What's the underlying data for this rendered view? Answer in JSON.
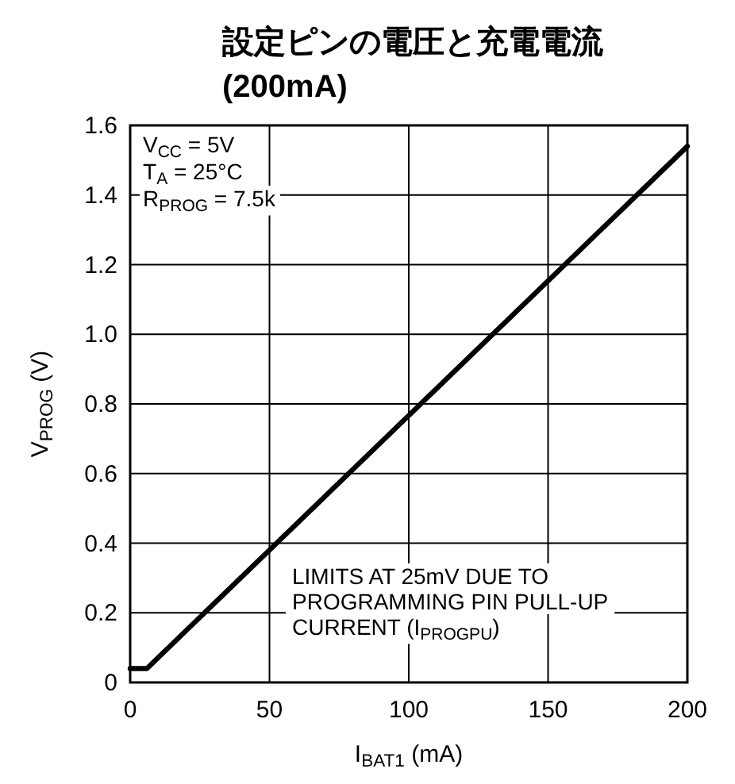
{
  "chart_data": {
    "type": "line",
    "title": "設定ピンの電圧と充電電流 (200mA)",
    "xlabel": "I$_{BAT1}$ (mA)",
    "ylabel": "V$_{PROG}$ (V)",
    "x": [
      0,
      6,
      200
    ],
    "series": [
      {
        "color": "#000000",
        "values": [
          0.04,
          0.04,
          1.54
        ]
      }
    ],
    "xlim": [
      0,
      200
    ],
    "xticks": [
      0,
      50,
      100,
      150,
      200
    ],
    "ylim": [
      0,
      1.6
    ],
    "yticks": [
      0,
      0.2,
      0.4,
      0.6,
      0.8,
      {
        "value": 1,
        "label": "1.0"
      },
      1.2,
      1.4,
      1.6
    ],
    "grid": true,
    "marker": "none",
    "line_style": "solid",
    "annotations": [
      "V$_{CC}$ = 5V",
      "T$_{A}$ = 25°C",
      "R$_{PROG}$ = 7.5k",
      "LIMITS AT 25mV DUE TO PROGRAMMING PIN PULL-UP CURRENT (I$_{PROGPU}$)"
    ]
  }
}
